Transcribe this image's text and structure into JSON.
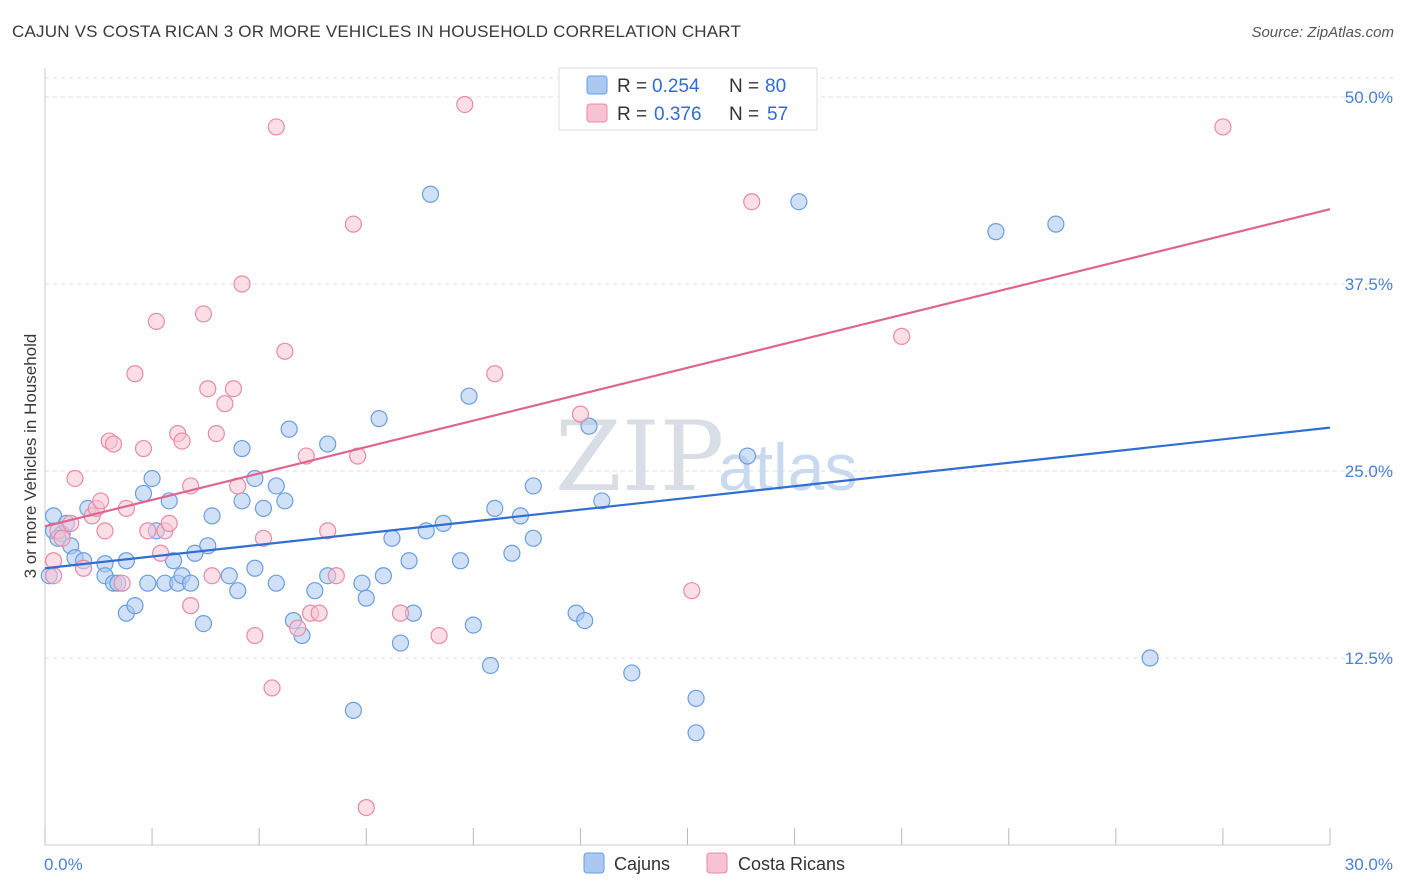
{
  "title": "CAJUN VS COSTA RICAN 3 OR MORE VEHICLES IN HOUSEHOLD CORRELATION CHART",
  "source": "Source: ZipAtlas.com",
  "watermark": {
    "zip": "ZIP",
    "atlas": "atlas"
  },
  "legend": {
    "r_label": "R =",
    "n_label": "N =",
    "entries": [
      {
        "r": "0.254",
        "n": "80"
      },
      {
        "r": "0.376",
        "n": "57"
      }
    ]
  },
  "bottom_legend": [
    "Cajuns",
    "Costa Ricans"
  ],
  "colors": {
    "cajun_fill": "#aac8f0",
    "cajun_stroke": "#6a9ee0",
    "cajun_line": "#2f6fd0",
    "costa_fill": "#f7c2d2",
    "costa_stroke": "#e88aa8",
    "costa_line": "#e0648f",
    "grid": "#dddddd",
    "tick_label": "#4a7fd4"
  },
  "chart_data": {
    "type": "scatter",
    "title": "CAJUN VS COSTA RICAN 3 OR MORE VEHICLES IN HOUSEHOLD CORRELATION CHART",
    "xlabel": "",
    "ylabel": "3 or more Vehicles in Household",
    "xlim": [
      0,
      30
    ],
    "ylim": [
      0,
      50
    ],
    "x_tick_labels": [
      "0.0%",
      "30.0%"
    ],
    "y_ticks": [
      12.5,
      25.0,
      37.5,
      50.0
    ],
    "y_tick_labels": [
      "12.5%",
      "25.0%",
      "37.5%",
      "50.0%"
    ],
    "grid": true,
    "legend_position": "top-center",
    "series": [
      {
        "name": "Cajuns",
        "r": 0.254,
        "n": 80,
        "trend": [
          [
            0,
            18.5
          ],
          [
            30,
            27.9
          ]
        ],
        "points": [
          [
            0.2,
            21.0
          ],
          [
            0.2,
            22.0
          ],
          [
            0.4,
            20.8
          ],
          [
            0.5,
            21.5
          ],
          [
            0.6,
            20.0
          ],
          [
            0.7,
            19.2
          ],
          [
            0.9,
            19.0
          ],
          [
            1.0,
            22.5
          ],
          [
            1.4,
            18.8
          ],
          [
            1.4,
            18.0
          ],
          [
            1.6,
            17.5
          ],
          [
            1.9,
            19.0
          ],
          [
            1.9,
            15.5
          ],
          [
            2.1,
            16.0
          ],
          [
            2.3,
            23.5
          ],
          [
            2.4,
            17.5
          ],
          [
            2.5,
            24.5
          ],
          [
            2.6,
            21.0
          ],
          [
            2.8,
            17.5
          ],
          [
            2.9,
            23.0
          ],
          [
            3.0,
            19.0
          ],
          [
            3.1,
            17.5
          ],
          [
            3.2,
            18.0
          ],
          [
            3.4,
            17.5
          ],
          [
            3.5,
            19.5
          ],
          [
            3.7,
            14.8
          ],
          [
            3.8,
            20.0
          ],
          [
            3.9,
            22.0
          ],
          [
            4.3,
            18.0
          ],
          [
            4.5,
            17.0
          ],
          [
            4.6,
            26.5
          ],
          [
            4.6,
            23.0
          ],
          [
            4.9,
            18.5
          ],
          [
            4.9,
            24.5
          ],
          [
            5.1,
            22.5
          ],
          [
            5.4,
            24.0
          ],
          [
            5.4,
            17.5
          ],
          [
            5.6,
            23.0
          ],
          [
            5.7,
            27.8
          ],
          [
            5.8,
            15.0
          ],
          [
            6.0,
            14.0
          ],
          [
            6.3,
            17.0
          ],
          [
            6.6,
            18.0
          ],
          [
            6.6,
            26.8
          ],
          [
            7.2,
            9.0
          ],
          [
            7.4,
            17.5
          ],
          [
            7.5,
            16.5
          ],
          [
            7.8,
            28.5
          ],
          [
            7.9,
            18.0
          ],
          [
            8.1,
            20.5
          ],
          [
            8.3,
            13.5
          ],
          [
            8.6,
            15.5
          ],
          [
            8.5,
            19.0
          ],
          [
            8.9,
            21.0
          ],
          [
            9.0,
            43.5
          ],
          [
            9.3,
            21.5
          ],
          [
            9.7,
            19.0
          ],
          [
            9.9,
            30.0
          ],
          [
            10.0,
            14.7
          ],
          [
            10.4,
            12.0
          ],
          [
            10.5,
            22.5
          ],
          [
            11.1,
            22.0
          ],
          [
            10.9,
            19.5
          ],
          [
            11.4,
            20.5
          ],
          [
            11.4,
            24.0
          ],
          [
            12.4,
            15.5
          ],
          [
            12.6,
            15.0
          ],
          [
            12.7,
            28.0
          ],
          [
            13.0,
            23.0
          ],
          [
            13.7,
            11.5
          ],
          [
            15.2,
            7.5
          ],
          [
            15.2,
            9.8
          ],
          [
            16.4,
            26.0
          ],
          [
            17.6,
            43.0
          ],
          [
            22.2,
            41.0
          ],
          [
            23.6,
            41.5
          ],
          [
            25.8,
            12.5
          ],
          [
            0.1,
            18.0
          ],
          [
            0.3,
            20.5
          ],
          [
            1.7,
            17.5
          ]
        ]
      },
      {
        "name": "Costa Ricans",
        "r": 0.376,
        "n": 57,
        "trend": [
          [
            0,
            21.3
          ],
          [
            30,
            42.5
          ]
        ],
        "points": [
          [
            0.2,
            18.0
          ],
          [
            0.2,
            19.0
          ],
          [
            0.3,
            21.0
          ],
          [
            0.4,
            20.5
          ],
          [
            0.6,
            21.5
          ],
          [
            0.7,
            24.5
          ],
          [
            0.9,
            18.5
          ],
          [
            1.1,
            22.0
          ],
          [
            1.2,
            22.5
          ],
          [
            1.3,
            23.0
          ],
          [
            1.4,
            21.0
          ],
          [
            1.5,
            27.0
          ],
          [
            1.6,
            26.8
          ],
          [
            1.8,
            17.5
          ],
          [
            1.9,
            22.5
          ],
          [
            2.1,
            31.5
          ],
          [
            2.3,
            26.5
          ],
          [
            2.4,
            21.0
          ],
          [
            2.6,
            35.0
          ],
          [
            2.7,
            19.5
          ],
          [
            2.8,
            21.0
          ],
          [
            2.9,
            21.5
          ],
          [
            3.1,
            27.5
          ],
          [
            3.2,
            27.0
          ],
          [
            3.4,
            24.0
          ],
          [
            3.4,
            16.0
          ],
          [
            3.7,
            35.5
          ],
          [
            3.8,
            30.5
          ],
          [
            3.9,
            18.0
          ],
          [
            4.0,
            27.5
          ],
          [
            4.2,
            29.5
          ],
          [
            4.4,
            30.5
          ],
          [
            4.5,
            24.0
          ],
          [
            4.6,
            37.5
          ],
          [
            4.9,
            14.0
          ],
          [
            5.1,
            20.5
          ],
          [
            5.3,
            10.5
          ],
          [
            5.4,
            48.0
          ],
          [
            5.6,
            33.0
          ],
          [
            5.9,
            14.5
          ],
          [
            6.1,
            26.0
          ],
          [
            6.2,
            15.5
          ],
          [
            6.4,
            15.5
          ],
          [
            6.6,
            21.0
          ],
          [
            6.8,
            18.0
          ],
          [
            7.2,
            41.5
          ],
          [
            7.3,
            26.0
          ],
          [
            7.5,
            2.5
          ],
          [
            8.3,
            15.5
          ],
          [
            9.2,
            14.0
          ],
          [
            9.8,
            49.5
          ],
          [
            10.5,
            31.5
          ],
          [
            12.5,
            28.8
          ],
          [
            15.1,
            17.0
          ],
          [
            16.5,
            43.0
          ],
          [
            20.0,
            34.0
          ],
          [
            27.5,
            48.0
          ]
        ]
      }
    ]
  }
}
